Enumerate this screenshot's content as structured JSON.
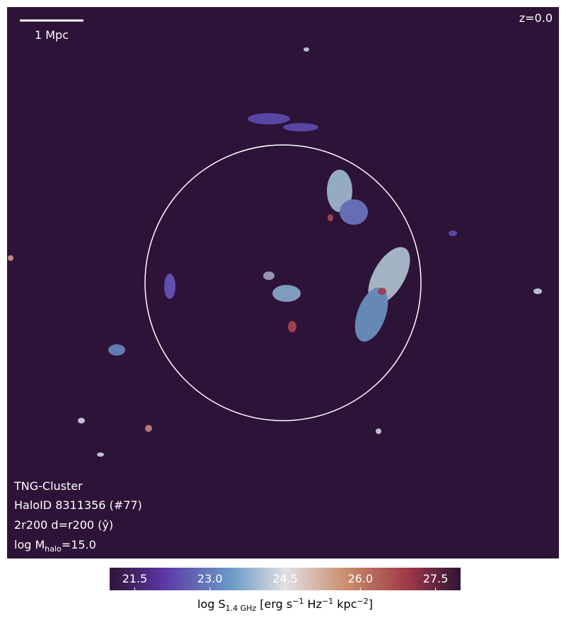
{
  "image": {
    "scale_bar": "1 Mpc",
    "redshift": "z=0.0",
    "info": [
      "TNG-Cluster",
      "HaloID 8311356 (#77)",
      "2r200 d=r200 (ŷ)"
    ],
    "mass": {
      "prefix": "log M",
      "sub": "halo",
      "suffix": "=15.0"
    }
  },
  "colorbar": {
    "clim": [
      21,
      28
    ],
    "ticks": [
      {
        "value": 21.5,
        "label": "21.5"
      },
      {
        "value": 23,
        "label": "23.0"
      },
      {
        "value": 24.5,
        "label": "24.5"
      },
      {
        "value": 26,
        "label": "26.0"
      },
      {
        "value": 27.5,
        "label": "27.5"
      }
    ],
    "label": [
      "log S",
      "1.4 GHz",
      " [erg s",
      "−1",
      " Hz",
      "−1",
      " kpc",
      "−2",
      "]"
    ]
  }
}
